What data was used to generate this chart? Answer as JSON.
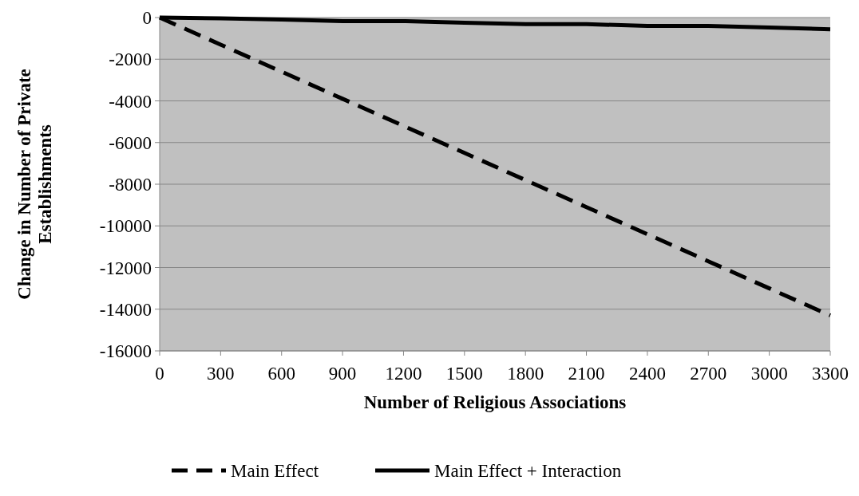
{
  "chart_data": {
    "type": "line",
    "xlabel": "Number of Religious Associations",
    "ylabel": "Change in Number of Private Establishments",
    "x": [
      0,
      300,
      600,
      900,
      1200,
      1500,
      1800,
      2100,
      2400,
      2700,
      3000,
      3300
    ],
    "series": [
      {
        "name": "Main Effect",
        "color": "#000000",
        "line_style": "dashed",
        "values": [
          0,
          -1300,
          -2600,
          -3900,
          -5200,
          -6500,
          -7800,
          -9100,
          -10400,
          -11700,
          -13000,
          -14300
        ]
      },
      {
        "name": "Main Effect + Interaction",
        "color": "#000000",
        "line_style": "solid",
        "values": [
          0,
          -40,
          -100,
          -170,
          -170,
          -250,
          -320,
          -320,
          -400,
          -400,
          -480,
          -560
        ]
      }
    ],
    "xlim": [
      0,
      3300
    ],
    "xticks": [
      0,
      300,
      600,
      900,
      1200,
      1500,
      1800,
      2100,
      2400,
      2700,
      3000,
      3300
    ],
    "ylim": [
      -16000,
      0
    ],
    "yticks": [
      -16000,
      -14000,
      -12000,
      -10000,
      -8000,
      -6000,
      -4000,
      -2000,
      0
    ],
    "grid": "y",
    "legend": "bottom",
    "marker": "none"
  }
}
